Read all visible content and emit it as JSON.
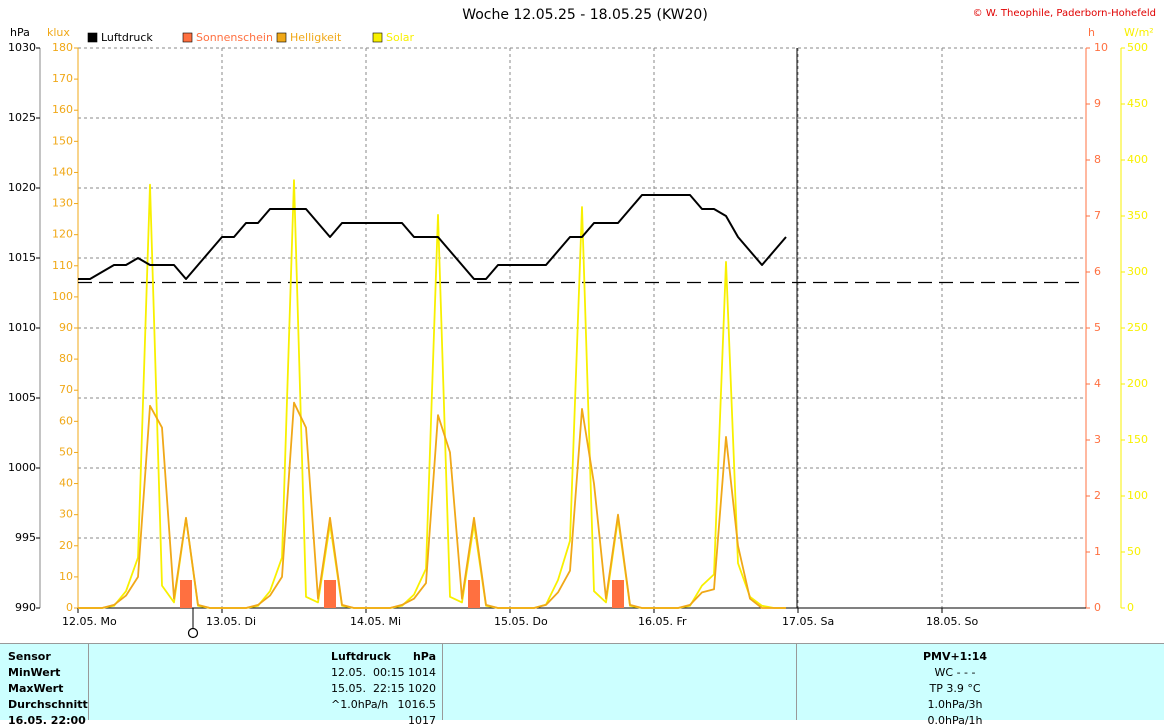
{
  "chart_data": {
    "type": "line",
    "title": "Woche 12.05.25 - 18.05.25 (KW20)",
    "copyright": "© W. Theophile, Paderborn-Hohefeld",
    "x": [
      0,
      2,
      4,
      6,
      8,
      10,
      12,
      14,
      16,
      18,
      20,
      22,
      24,
      26,
      28,
      30,
      32,
      34,
      36,
      38,
      40,
      42,
      44,
      46,
      48,
      50,
      52,
      54,
      56,
      58,
      60,
      62,
      64,
      66,
      68,
      70,
      72,
      74,
      76,
      78,
      80,
      82,
      84,
      86,
      88,
      90,
      92,
      94,
      96,
      98,
      100,
      102,
      104,
      106,
      108,
      110,
      112,
      114,
      116,
      118
    ],
    "xlim": [
      0,
      168
    ],
    "xticks": [
      {
        "value": 0,
        "label": "12.05. Mo"
      },
      {
        "value": 24,
        "label": "13.05. Di"
      },
      {
        "value": 48,
        "label": "14.05. Mi"
      },
      {
        "value": 72,
        "label": "15.05. Do"
      },
      {
        "value": 96,
        "label": "16.05. Fr"
      },
      {
        "value": 120,
        "label": "17.05. Sa"
      },
      {
        "value": 144,
        "label": "18.05. So"
      }
    ],
    "ylabel": "hPa",
    "ylim": [
      990,
      1030
    ],
    "yticks": [
      990,
      995,
      1000,
      1005,
      1010,
      1015,
      1020,
      1025,
      1030
    ],
    "y2label": "klux",
    "y2lim": [
      0,
      180
    ],
    "y2ticks": [
      0,
      10,
      20,
      30,
      40,
      50,
      60,
      70,
      80,
      90,
      100,
      110,
      120,
      130,
      140,
      150,
      160,
      170,
      180
    ],
    "y3label": "h",
    "y3lim": [
      0,
      10
    ],
    "y3ticks": [
      0,
      1,
      2,
      3,
      4,
      5,
      6,
      7,
      8,
      9,
      10
    ],
    "y4label": "W/m²",
    "y4lim": [
      0,
      500
    ],
    "y4ticks": [
      0,
      50,
      100,
      150,
      200,
      250,
      300,
      350,
      400,
      450,
      500
    ],
    "grid": true,
    "reference_line": 1013.25,
    "series": [
      {
        "name": "Luftdruck",
        "type": "line",
        "axis": "y",
        "color": "#000000",
        "values": [
          1013.5,
          1013.5,
          1014,
          1014.5,
          1014.5,
          1015,
          1014.5,
          1014.5,
          1014.5,
          1013.5,
          1014.5,
          1015.5,
          1016.5,
          1016.5,
          1017.5,
          1017.5,
          1018.5,
          1018.5,
          1018.5,
          1018.5,
          1017.5,
          1016.5,
          1017.5,
          1017.5,
          1017.5,
          1017.5,
          1017.5,
          1017.5,
          1016.5,
          1016.5,
          1016.5,
          1015.5,
          1014.5,
          1013.5,
          1013.5,
          1014.5,
          1014.5,
          1014.5,
          1014.5,
          1014.5,
          1015.5,
          1016.5,
          1016.5,
          1017.5,
          1017.5,
          1017.5,
          1018.5,
          1019.5,
          1019.5,
          1019.5,
          1019.5,
          1019.5,
          1018.5,
          1018.5,
          1018,
          1016.5,
          1015.5,
          1014.5,
          1015.5,
          1016.5
        ]
      },
      {
        "name": "Sonnenschein",
        "type": "bar",
        "axis": "y3",
        "color": "#ff7040",
        "values": [
          0,
          0,
          0,
          0,
          0,
          0,
          0,
          0,
          0,
          0.5,
          0,
          0,
          0,
          0,
          0,
          0,
          0,
          0,
          0,
          0,
          0,
          0.5,
          0,
          0,
          0,
          0,
          0,
          0,
          0,
          0,
          0,
          0,
          0,
          0.5,
          0,
          0,
          0,
          0,
          0,
          0,
          0,
          0,
          0,
          0,
          0,
          0.5,
          0,
          0,
          0,
          0,
          0,
          0,
          0,
          0,
          0,
          0,
          0,
          0,
          0,
          0
        ]
      },
      {
        "name": "Helligkeit",
        "type": "line",
        "axis": "y2",
        "color": "#f0a818",
        "values": [
          0,
          0,
          0,
          1,
          4,
          10,
          65,
          58,
          3,
          29,
          1,
          0,
          0,
          0,
          0,
          1,
          4,
          10,
          66,
          58,
          3,
          29,
          1,
          0,
          0,
          0,
          0,
          1,
          3,
          8,
          62,
          50,
          3,
          29,
          1,
          0,
          0,
          0,
          0,
          1,
          5,
          12,
          64,
          40,
          3,
          30,
          1,
          0,
          0,
          0,
          0,
          1,
          5,
          6,
          55,
          20,
          3,
          0,
          0,
          0
        ]
      },
      {
        "name": "Solar",
        "type": "line",
        "axis": "y4",
        "color": "#f8f000",
        "values": [
          0,
          0,
          0,
          2,
          15,
          45,
          378,
          20,
          5,
          80,
          2,
          0,
          0,
          0,
          0,
          2,
          15,
          45,
          382,
          10,
          5,
          75,
          2,
          0,
          0,
          0,
          0,
          2,
          12,
          35,
          351,
          10,
          5,
          75,
          2,
          0,
          0,
          0,
          0,
          3,
          25,
          60,
          358,
          15,
          5,
          80,
          2,
          0,
          0,
          0,
          0,
          2,
          20,
          30,
          309,
          40,
          10,
          2,
          0,
          0
        ]
      }
    ]
  },
  "table": {
    "header": [
      "Sensor",
      "Luftdruck",
      "hPa",
      "PMV+1:14"
    ],
    "rows": [
      [
        "MinWert",
        "12.05.  00:15",
        "1014",
        "WC - - -"
      ],
      [
        "MaxWert",
        "15.05.  22:15",
        "1020",
        "TP 3.9 °C"
      ],
      [
        "Durchschnitt",
        "^1.0hPa/h",
        "1016.5",
        "1.0hPa/3h"
      ],
      [
        "16.05. 22:00",
        null,
        "1017",
        "0.0hPa/1h"
      ]
    ]
  }
}
